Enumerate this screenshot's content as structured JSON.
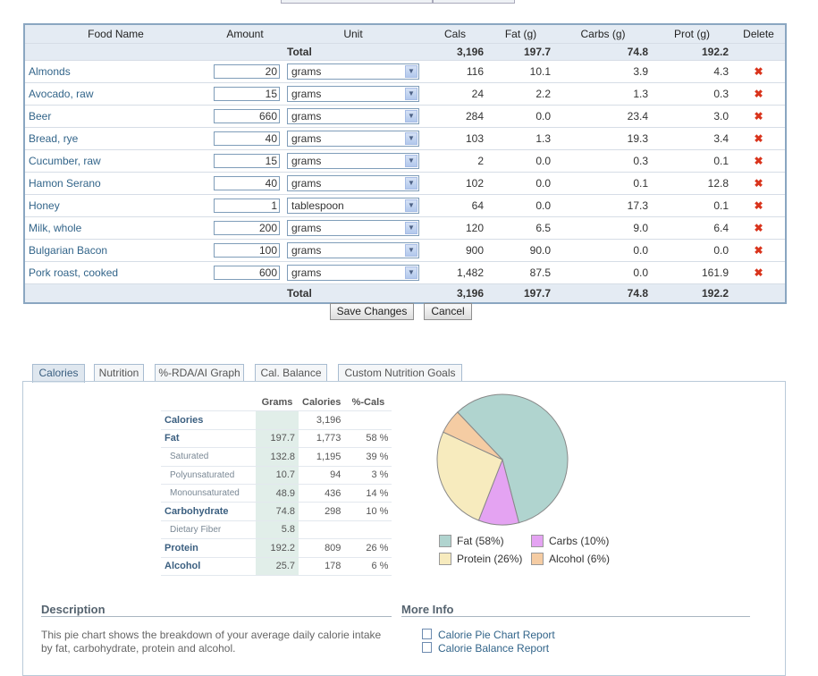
{
  "table": {
    "headers": [
      "Food Name",
      "Amount",
      "Unit",
      "Cals",
      "Fat (g)",
      "Carbs (g)",
      "Prot (g)",
      "Delete"
    ],
    "total_label": "Total",
    "totals": {
      "cals": "3,196",
      "fat": "197.7",
      "carbs": "74.8",
      "prot": "192.2"
    },
    "rows": [
      {
        "name": "Almonds",
        "amount": "20",
        "unit": "grams",
        "cals": "116",
        "fat": "10.1",
        "carbs": "3.9",
        "prot": "4.3"
      },
      {
        "name": "Avocado, raw",
        "amount": "15",
        "unit": "grams",
        "cals": "24",
        "fat": "2.2",
        "carbs": "1.3",
        "prot": "0.3"
      },
      {
        "name": "Beer",
        "amount": "660",
        "unit": "grams",
        "cals": "284",
        "fat": "0.0",
        "carbs": "23.4",
        "prot": "3.0"
      },
      {
        "name": "Bread, rye",
        "amount": "40",
        "unit": "grams",
        "cals": "103",
        "fat": "1.3",
        "carbs": "19.3",
        "prot": "3.4"
      },
      {
        "name": "Cucumber, raw",
        "amount": "15",
        "unit": "grams",
        "cals": "2",
        "fat": "0.0",
        "carbs": "0.3",
        "prot": "0.1"
      },
      {
        "name": "Hamon Serano",
        "amount": "40",
        "unit": "grams",
        "cals": "102",
        "fat": "0.0",
        "carbs": "0.1",
        "prot": "12.8"
      },
      {
        "name": "Honey",
        "amount": "1",
        "unit": "tablespoon",
        "cals": "64",
        "fat": "0.0",
        "carbs": "17.3",
        "prot": "0.1"
      },
      {
        "name": "Milk, whole",
        "amount": "200",
        "unit": "grams",
        "cals": "120",
        "fat": "6.5",
        "carbs": "9.0",
        "prot": "6.4"
      },
      {
        "name": "Bulgarian Bacon",
        "amount": "100",
        "unit": "grams",
        "cals": "900",
        "fat": "90.0",
        "carbs": "0.0",
        "prot": "0.0"
      },
      {
        "name": "Pork roast, cooked",
        "amount": "600",
        "unit": "grams",
        "cals": "1,482",
        "fat": "87.5",
        "carbs": "0.0",
        "prot": "161.9"
      }
    ],
    "delete_icon": "close-x-icon",
    "delete_color": "#d9341c"
  },
  "buttons": {
    "save": "Save Changes",
    "cancel": "Cancel"
  },
  "tabs": [
    "Calories",
    "Nutrition",
    "%-RDA/AI Graph",
    "Cal. Balance",
    "Custom Nutrition Goals"
  ],
  "active_tab": "Calories",
  "calories_table": {
    "headers": [
      "Grams",
      "Calories",
      "%-Cals"
    ],
    "rows": [
      {
        "label": "Calories",
        "grams": "",
        "cals": "3,196",
        "pct": "",
        "sub": false
      },
      {
        "label": "Fat",
        "grams": "197.7",
        "cals": "1,773",
        "pct": "58 %",
        "sub": false
      },
      {
        "label": "Saturated",
        "grams": "132.8",
        "cals": "1,195",
        "pct": "39 %",
        "sub": true
      },
      {
        "label": "Polyunsaturated",
        "grams": "10.7",
        "cals": "94",
        "pct": "3 %",
        "sub": true
      },
      {
        "label": "Monounsaturated",
        "grams": "48.9",
        "cals": "436",
        "pct": "14 %",
        "sub": true
      },
      {
        "label": "Carbohydrate",
        "grams": "74.8",
        "cals": "298",
        "pct": "10 %",
        "sub": false
      },
      {
        "label": "Dietary Fiber",
        "grams": "5.8",
        "cals": "",
        "pct": "",
        "sub": true
      },
      {
        "label": "Protein",
        "grams": "192.2",
        "cals": "809",
        "pct": "26 %",
        "sub": false
      },
      {
        "label": "Alcohol",
        "grams": "25.7",
        "cals": "178",
        "pct": "6 %",
        "sub": false
      }
    ]
  },
  "chart_data": {
    "type": "pie",
    "categories": [
      "Fat",
      "Carbs",
      "Protein",
      "Alcohol"
    ],
    "values": [
      58,
      10,
      26,
      6
    ],
    "legend_labels": [
      "Fat  (58%)",
      "Carbs  (10%)",
      "Protein  (26%)",
      "Alcohol  (6%)"
    ],
    "colors": [
      "#b0d4cf",
      "#e4a3f2",
      "#f7ebbe",
      "#f5cca3"
    ],
    "legend_position": "bottom"
  },
  "description": {
    "title": "Description",
    "text": "This pie chart shows the breakdown of your average daily calorie intake by fat, carbohydrate, protein and alcohol."
  },
  "more_info": {
    "title": "More Info",
    "links": [
      "Calorie Pie Chart Report",
      "Calorie Balance Report"
    ],
    "link_icon": "document-icon"
  }
}
